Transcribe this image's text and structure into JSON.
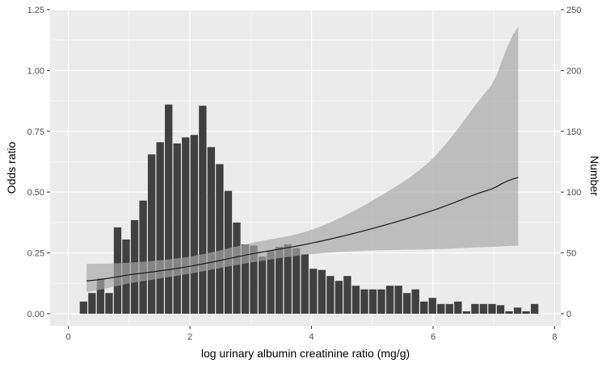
{
  "chart_data": {
    "type": "bar",
    "title": "",
    "xlabel": "log urinary albumin creatinine ratio (mg/g)",
    "ylabel_left": "Odds ratio",
    "ylabel_right": "Number",
    "xlim": [
      -0.3,
      8.1
    ],
    "x_ticks": [
      0,
      2,
      4,
      6,
      8
    ],
    "ylim_left": [
      -0.05,
      1.25
    ],
    "y_ticks_left": [
      0.0,
      0.25,
      0.5,
      0.75,
      1.0,
      1.25
    ],
    "y_tick_labels_left": [
      "0.00",
      "0.25",
      "0.50",
      "0.75",
      "1.00",
      "1.25"
    ],
    "ylim_right": [
      -10,
      250
    ],
    "y_ticks_right": [
      0,
      50,
      100,
      150,
      200,
      250
    ],
    "y_tick_labels_right": [
      "0",
      "50",
      "100",
      "150",
      "200",
      "250"
    ],
    "grid": true,
    "colors": {
      "panel": "#ebebeb",
      "grid": "#ffffff",
      "bars": "#404040",
      "ribbon": "#a6a6a6",
      "line": "#1a1a1a"
    },
    "histogram": {
      "name": "Number",
      "bin_width": 0.14,
      "x": [
        0.25,
        0.39,
        0.53,
        0.67,
        0.81,
        0.95,
        1.09,
        1.23,
        1.37,
        1.51,
        1.65,
        1.79,
        1.93,
        2.07,
        2.21,
        2.35,
        2.49,
        2.63,
        2.77,
        2.91,
        3.05,
        3.19,
        3.33,
        3.47,
        3.61,
        3.75,
        3.89,
        4.03,
        4.17,
        4.31,
        4.45,
        4.59,
        4.73,
        4.87,
        5.01,
        5.15,
        5.29,
        5.43,
        5.57,
        5.71,
        5.85,
        5.99,
        6.13,
        6.27,
        6.41,
        6.55,
        6.69,
        6.83,
        6.97,
        7.11,
        7.25,
        7.39,
        7.53,
        7.67
      ],
      "values": [
        10,
        17,
        29,
        17,
        71,
        61,
        77,
        93,
        131,
        141,
        172,
        140,
        145,
        147,
        171,
        137,
        123,
        101,
        75,
        57,
        56,
        47,
        52,
        55,
        57,
        54,
        49,
        37,
        36,
        31,
        27,
        31,
        23,
        20,
        20,
        20,
        23,
        23,
        17,
        20,
        10,
        13,
        8,
        8,
        10,
        2,
        8,
        8,
        8,
        7,
        2,
        5,
        2,
        8
      ]
    },
    "odds_ratio_curve": {
      "name": "Odds ratio",
      "x": [
        0.3,
        1.0,
        2.0,
        3.0,
        4.0,
        5.0,
        6.0,
        7.0,
        7.4
      ],
      "y": [
        0.135,
        0.16,
        0.195,
        0.245,
        0.29,
        0.35,
        0.425,
        0.515,
        0.56
      ],
      "lower": [
        0.09,
        0.125,
        0.165,
        0.21,
        0.245,
        0.26,
        0.265,
        0.275,
        0.28
      ],
      "upper": [
        0.205,
        0.21,
        0.235,
        0.29,
        0.345,
        0.465,
        0.64,
        0.95,
        1.18
      ]
    }
  }
}
